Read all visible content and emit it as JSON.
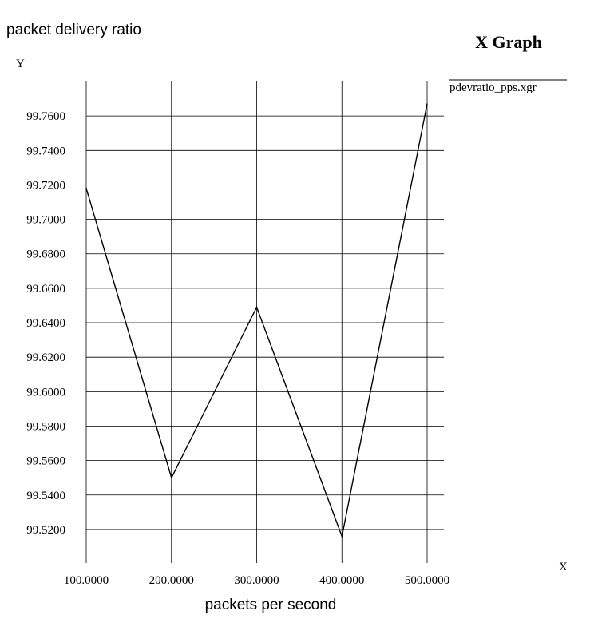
{
  "header": {
    "chart_title": "packet delivery ratio",
    "window_title": "X Graph"
  },
  "chart_data": {
    "type": "line",
    "title": "packet delivery ratio",
    "xlabel": "packets per second",
    "ylabel": "",
    "x_axis_letter": "X",
    "y_axis_letter": "Y",
    "x": [
      100,
      200,
      300,
      400,
      500
    ],
    "xlim": [
      100,
      500
    ],
    "ylim": [
      99.5005,
      99.78
    ],
    "x_ticks": [
      100,
      200,
      300,
      400,
      500
    ],
    "x_tick_labels": [
      "100.0000",
      "200.0000",
      "300.0000",
      "400.0000",
      "500.0000"
    ],
    "y_ticks": [
      99.52,
      99.54,
      99.56,
      99.58,
      99.6,
      99.62,
      99.64,
      99.66,
      99.68,
      99.7,
      99.72,
      99.74,
      99.76
    ],
    "y_tick_labels": [
      "99.5200",
      "99.5400",
      "99.5600",
      "99.5800",
      "99.6000",
      "99.6200",
      "99.6400",
      "99.6600",
      "99.6800",
      "99.7000",
      "99.7200",
      "99.7400",
      "99.7600"
    ],
    "grid": true,
    "legend_position": "top-right",
    "series": [
      {
        "name": "pdevratio_pps.xgr",
        "values": [
          99.718,
          99.55,
          99.649,
          99.516,
          99.767
        ],
        "color": "#000000"
      }
    ]
  }
}
